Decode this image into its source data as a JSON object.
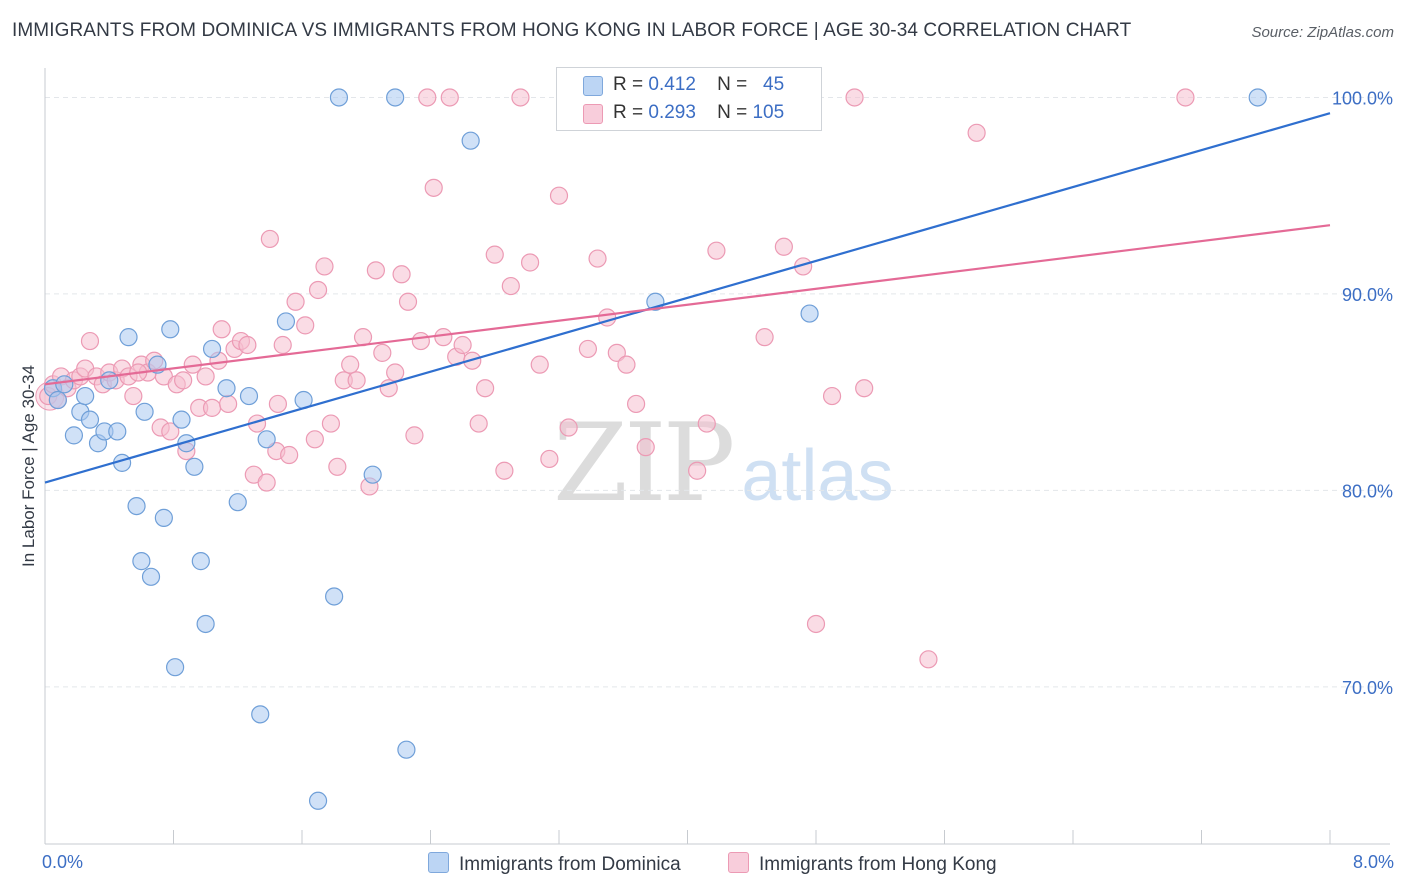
{
  "title": "IMMIGRANTS FROM DOMINICA VS IMMIGRANTS FROM HONG KONG IN LABOR FORCE | AGE 30-34 CORRELATION CHART",
  "source": "Source: ZipAtlas.com",
  "legend": {
    "row1": {
      "r_label": "R =",
      "r_value": "0.412",
      "n_label": "N =",
      "n_value": "45"
    },
    "row2": {
      "r_label": "R =",
      "r_value": "0.293",
      "n_label": "N =",
      "n_value": "105"
    }
  },
  "watermark": {
    "zip": "ZIP",
    "atlas": "atlas"
  },
  "colors": {
    "blue_fill": "#a9c8f0",
    "blue_stroke": "#6f9fd8",
    "blue_line": "#2f6fcf",
    "pink_fill": "#f6bfd0",
    "pink_stroke": "#ec9ab4",
    "pink_line": "#e46a96",
    "grid": "#e3e6ea",
    "axis_text": "#3c6ec4"
  },
  "chart_data": {
    "type": "scatter",
    "title": "IMMIGRANTS FROM DOMINICA VS IMMIGRANTS FROM HONG KONG IN LABOR FORCE | AGE 30-34 CORRELATION CHART",
    "xlabel": "",
    "ylabel": "In Labor Force | Age 30-34",
    "xlim": [
      0.0,
      8.0
    ],
    "ylim": [
      62.0,
      101.5
    ],
    "x_tick_labels": [
      "0.0%",
      "8.0%"
    ],
    "y_ticks": [
      70,
      80,
      90,
      100
    ],
    "y_tick_labels": [
      "70.0%",
      "80.0%",
      "90.0%",
      "100.0%"
    ],
    "grid": true,
    "legend_position": "top-center",
    "series": [
      {
        "name": "Immigrants from Dominica",
        "color": "#a9c8f0",
        "trend": {
          "x": [
            0.0,
            8.0
          ],
          "y": [
            80.4,
            99.2
          ]
        },
        "points": [
          [
            0.05,
            85.2
          ],
          [
            0.08,
            84.6
          ],
          [
            0.12,
            85.4
          ],
          [
            0.18,
            82.8
          ],
          [
            0.22,
            84.0
          ],
          [
            0.25,
            84.8
          ],
          [
            0.28,
            83.6
          ],
          [
            0.33,
            82.4
          ],
          [
            0.37,
            83.0
          ],
          [
            0.4,
            85.6
          ],
          [
            0.45,
            83.0
          ],
          [
            0.48,
            81.4
          ],
          [
            0.52,
            87.8
          ],
          [
            0.57,
            79.2
          ],
          [
            0.6,
            76.4
          ],
          [
            0.62,
            84.0
          ],
          [
            0.66,
            75.6
          ],
          [
            0.7,
            86.4
          ],
          [
            0.74,
            78.6
          ],
          [
            0.78,
            88.2
          ],
          [
            0.85,
            83.6
          ],
          [
            0.88,
            82.4
          ],
          [
            0.93,
            81.2
          ],
          [
            0.97,
            76.4
          ],
          [
            1.0,
            73.2
          ],
          [
            0.81,
            71.0
          ],
          [
            1.04,
            87.2
          ],
          [
            1.13,
            85.2
          ],
          [
            1.2,
            79.4
          ],
          [
            1.27,
            84.8
          ],
          [
            1.34,
            68.6
          ],
          [
            1.38,
            82.6
          ],
          [
            1.5,
            88.6
          ],
          [
            1.61,
            84.6
          ],
          [
            1.7,
            64.2
          ],
          [
            1.8,
            74.6
          ],
          [
            1.83,
            100.0
          ],
          [
            2.04,
            80.8
          ],
          [
            2.18,
            100.0
          ],
          [
            2.25,
            66.8
          ],
          [
            2.65,
            97.8
          ],
          [
            4.15,
            100.0
          ],
          [
            3.8,
            89.6
          ],
          [
            4.76,
            89.0
          ],
          [
            7.55,
            100.0
          ]
        ]
      },
      {
        "name": "Immigrants from Hong Kong",
        "color": "#f6bfd0",
        "trend": {
          "x": [
            0.0,
            8.0
          ],
          "y": [
            85.4,
            93.5
          ]
        },
        "points": [
          [
            0.02,
            84.8
          ],
          [
            0.05,
            85.4
          ],
          [
            0.08,
            84.6
          ],
          [
            0.1,
            85.8
          ],
          [
            0.14,
            85.2
          ],
          [
            0.18,
            85.6
          ],
          [
            0.22,
            85.8
          ],
          [
            0.25,
            86.2
          ],
          [
            0.28,
            87.6
          ],
          [
            0.32,
            85.8
          ],
          [
            0.36,
            85.4
          ],
          [
            0.4,
            86.0
          ],
          [
            0.44,
            85.6
          ],
          [
            0.48,
            86.2
          ],
          [
            0.52,
            85.8
          ],
          [
            0.55,
            84.8
          ],
          [
            0.6,
            86.4
          ],
          [
            0.64,
            86.0
          ],
          [
            0.68,
            86.6
          ],
          [
            0.72,
            83.2
          ],
          [
            0.74,
            85.8
          ],
          [
            0.78,
            83.0
          ],
          [
            0.82,
            85.4
          ],
          [
            0.86,
            85.6
          ],
          [
            0.88,
            82.0
          ],
          [
            0.92,
            86.4
          ],
          [
            0.96,
            84.2
          ],
          [
            1.0,
            85.8
          ],
          [
            1.04,
            84.2
          ],
          [
            1.08,
            86.6
          ],
          [
            1.1,
            88.2
          ],
          [
            1.14,
            84.4
          ],
          [
            1.18,
            87.2
          ],
          [
            1.22,
            87.6
          ],
          [
            1.26,
            87.4
          ],
          [
            1.3,
            80.8
          ],
          [
            1.32,
            83.4
          ],
          [
            1.38,
            80.4
          ],
          [
            1.4,
            92.8
          ],
          [
            1.44,
            82.0
          ],
          [
            1.48,
            87.4
          ],
          [
            1.52,
            81.8
          ],
          [
            1.56,
            89.6
          ],
          [
            1.62,
            88.4
          ],
          [
            1.68,
            82.6
          ],
          [
            1.7,
            90.2
          ],
          [
            1.74,
            91.4
          ],
          [
            1.78,
            83.4
          ],
          [
            1.82,
            81.2
          ],
          [
            1.86,
            85.6
          ],
          [
            1.9,
            86.4
          ],
          [
            1.94,
            85.6
          ],
          [
            1.98,
            87.8
          ],
          [
            2.02,
            80.2
          ],
          [
            2.06,
            91.2
          ],
          [
            2.1,
            87.0
          ],
          [
            2.14,
            85.2
          ],
          [
            2.18,
            86.0
          ],
          [
            2.22,
            91.0
          ],
          [
            2.26,
            89.6
          ],
          [
            2.3,
            82.8
          ],
          [
            2.34,
            87.6
          ],
          [
            2.38,
            100.0
          ],
          [
            2.42,
            95.4
          ],
          [
            2.48,
            87.8
          ],
          [
            2.52,
            100.0
          ],
          [
            2.56,
            86.8
          ],
          [
            2.6,
            87.4
          ],
          [
            2.66,
            86.6
          ],
          [
            2.7,
            83.4
          ],
          [
            2.74,
            85.2
          ],
          [
            2.8,
            92.0
          ],
          [
            2.86,
            81.0
          ],
          [
            2.9,
            90.4
          ],
          [
            2.96,
            100.0
          ],
          [
            3.02,
            91.6
          ],
          [
            3.08,
            86.4
          ],
          [
            3.14,
            81.6
          ],
          [
            3.2,
            95.0
          ],
          [
            3.26,
            83.2
          ],
          [
            3.32,
            100.0
          ],
          [
            3.38,
            87.2
          ],
          [
            3.44,
            91.8
          ],
          [
            3.5,
            88.8
          ],
          [
            3.56,
            87.0
          ],
          [
            3.62,
            86.4
          ],
          [
            3.68,
            84.4
          ],
          [
            3.74,
            82.2
          ],
          [
            3.86,
            100.0
          ],
          [
            4.06,
            81.0
          ],
          [
            4.12,
            83.4
          ],
          [
            4.18,
            92.2
          ],
          [
            4.48,
            87.8
          ],
          [
            4.6,
            92.4
          ],
          [
            4.72,
            91.4
          ],
          [
            4.8,
            73.2
          ],
          [
            4.9,
            84.8
          ],
          [
            5.1,
            85.2
          ],
          [
            5.04,
            100.0
          ],
          [
            5.5,
            71.4
          ],
          [
            5.8,
            98.2
          ],
          [
            7.1,
            100.0
          ],
          [
            4.24,
            100.0
          ],
          [
            1.45,
            84.4
          ],
          [
            0.58,
            86.0
          ]
        ]
      }
    ]
  },
  "bottom_legend": {
    "series1": "Immigrants from Dominica",
    "series2": "Immigrants from Hong Kong"
  }
}
